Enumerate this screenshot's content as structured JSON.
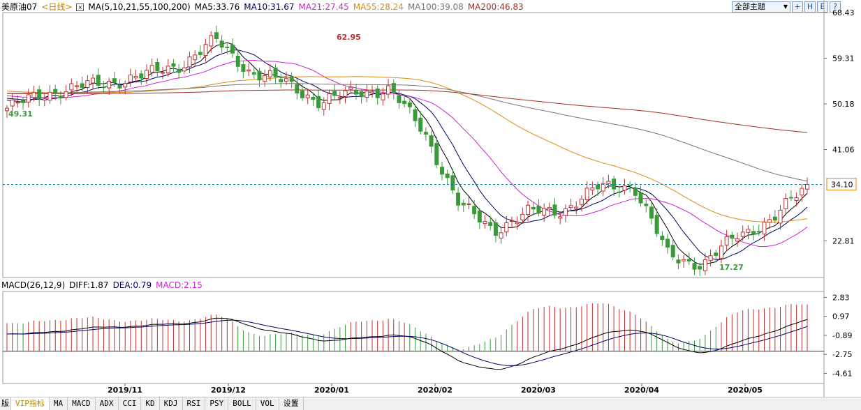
{
  "header": {
    "symbol": "美原油07",
    "period": "<日线>",
    "ma_params": "MA(5,10,21,55,100,200)",
    "ma5": "MA5:33.76",
    "ma10": "MA10:31.67",
    "ma21": "MA21:27.45",
    "ma55": "MA55:28.24",
    "ma100": "MA100:39.08",
    "ma200": "MA200:46.83",
    "theme_label": "全部主题",
    "theme_arrow": "▼",
    "btn_plus": "+",
    "btn_h": "H",
    "btn_e": "E",
    "btn_q": "?"
  },
  "colors": {
    "ma5": "#000000",
    "ma10": "#000066",
    "ma21": "#d020d0",
    "ma55": "#e08a10",
    "ma100": "#777777",
    "ma200": "#a0302a",
    "up": "#c03030",
    "down": "#3a9a3a",
    "dash": "#1a7a9a"
  },
  "macd_header": {
    "params": "MACD(26,12,9)",
    "diff": "DIFF:1.87",
    "dea": "DEA:0.79",
    "macd": "MACD:2.15"
  },
  "tabs": [
    "版",
    "VIP指标",
    "MA",
    "MACD",
    "ADX",
    "CCI",
    "KD",
    "KDJ",
    "RSI",
    "PSY",
    "BOLL",
    "VOL",
    "设置"
  ],
  "chart_data": [
    {
      "type": "candlestick",
      "title": "美原油07 <日线>",
      "y_ticks": [
        "68.43",
        "59.31",
        "50.18",
        "41.06",
        "22.81"
      ],
      "ylim": [
        15.5,
        68.43
      ],
      "x_ticks": [
        "2019/11",
        "2019/12",
        "2020/01",
        "2020/02",
        "2020/03",
        "2020/04",
        "2020/05"
      ],
      "last_price": "34.10",
      "annotations": {
        "high": "62.95",
        "low": "17.27",
        "start": "49.31"
      },
      "key_closes": [
        49.31,
        52.0,
        53.5,
        54.5,
        56.0,
        58.0,
        62.95,
        56.5,
        54.5,
        50.5,
        52.5,
        53.0,
        44.5,
        30.0,
        25.0,
        28.5,
        29.0,
        33.5,
        34.0,
        20.0,
        18.0,
        24.0,
        27.0,
        34.1
      ]
    },
    {
      "type": "macd",
      "y_ticks": [
        "2.83",
        "0.97",
        "-0.89",
        "-2.75",
        "-4.61"
      ],
      "ylim": [
        -5.6,
        3.4
      ],
      "DIFF": 1.87,
      "DEA": 0.79,
      "MACD": 2.15
    }
  ]
}
